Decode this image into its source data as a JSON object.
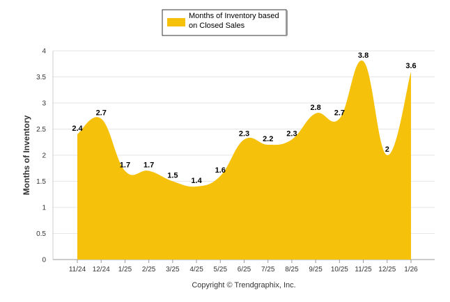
{
  "chart_data": {
    "type": "area",
    "categories": [
      "11/24",
      "12/24",
      "1/25",
      "2/25",
      "3/25",
      "4/25",
      "5/25",
      "6/25",
      "7/25",
      "8/25",
      "9/25",
      "10/25",
      "11/25",
      "12/25",
      "1/26"
    ],
    "series": [
      {
        "name": "Months of Inventory based on Closed Sales",
        "values": [
          2.4,
          2.7,
          1.7,
          1.7,
          1.5,
          1.4,
          1.6,
          2.3,
          2.2,
          2.3,
          2.8,
          2.7,
          3.8,
          2,
          3.6
        ],
        "labels": [
          "2.4",
          "2.7",
          "1.7",
          "1.7",
          "1.5",
          "1.4",
          "1.6",
          "2.3",
          "2.2",
          "2.3",
          "2.8",
          "2.7",
          "3.8",
          "2",
          "3.6"
        ],
        "color": "#F5C10A"
      }
    ],
    "legend": {
      "line1": "Months of Inventory based",
      "line2": "on Closed Sales",
      "placement": "top-center"
    },
    "ylabel": "Months of Inventory",
    "xlabel": "",
    "ylim": [
      0,
      4
    ],
    "yticks": [
      "0",
      "0.5",
      "1",
      "1.5",
      "2",
      "2.5",
      "3",
      "3.5",
      "4"
    ],
    "ytick_values": [
      0,
      0.5,
      1,
      1.5,
      2,
      2.5,
      3,
      3.5,
      4
    ],
    "grid": true,
    "credit": "Copyright © Trendgraphix, Inc."
  }
}
